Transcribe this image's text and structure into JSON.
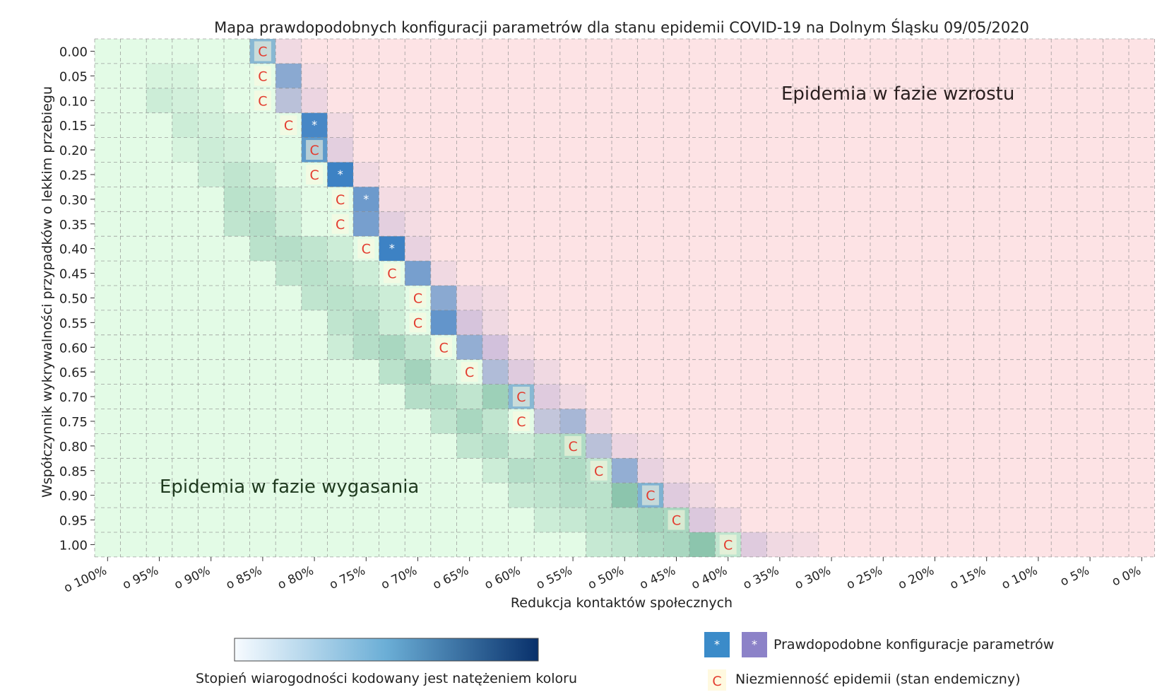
{
  "chart_data": {
    "type": "heatmap",
    "title": "Mapa prawdopodobnych konfiguracji parametrów dla stanu epidemii COVID-19 na Dolnym Śląsku 09/05/2020",
    "xlabel": "Redukcja kontaktów społecznych",
    "ylabel": "Współczynnik wykrywalności przypadków o lekkim przebiegu",
    "x_ticks": [
      "o 100%",
      "o 95%",
      "o 90%",
      "o 85%",
      "o 80%",
      "o 75%",
      "o 70%",
      "o 65%",
      "o 60%",
      "o 55%",
      "o 50%",
      "o 45%",
      "o 40%",
      "o 35%",
      "o 30%",
      "o 25%",
      "o 20%",
      "o 15%",
      "o 10%",
      "o 5%",
      "o 0%"
    ],
    "y_ticks": [
      "0.00",
      "0.05",
      "0.10",
      "0.15",
      "0.20",
      "0.25",
      "0.30",
      "0.35",
      "0.40",
      "0.45",
      "0.50",
      "0.55",
      "0.60",
      "0.65",
      "0.70",
      "0.75",
      "0.80",
      "0.85",
      "0.90",
      "0.95",
      "1.00"
    ],
    "x_values_percent": [
      100,
      97.5,
      95,
      92.5,
      90,
      87.5,
      85,
      82.5,
      80,
      77.5,
      75,
      72.5,
      70,
      67.5,
      65,
      62.5,
      60,
      57.5,
      55,
      52.5,
      50,
      47.5,
      45,
      42.5,
      40,
      37.5,
      35,
      32.5,
      30,
      27.5,
      25,
      22.5,
      20,
      17.5,
      15,
      12.5,
      10,
      7.5,
      5,
      2.5,
      0
    ],
    "y_values": [
      0.0,
      0.05,
      0.1,
      0.15,
      0.2,
      0.25,
      0.3,
      0.35,
      0.4,
      0.45,
      0.5,
      0.55,
      0.6,
      0.65,
      0.7,
      0.75,
      0.8,
      0.85,
      0.9,
      0.95,
      1.0
    ],
    "regions": {
      "declining_label": "Epidemia w fazie wygasania",
      "growing_label": "Epidemia w fazie wzrostu",
      "declining_color": "#e3fbe6",
      "growing_color": "#fde3e5"
    },
    "endemic_C": [
      [
        0,
        6
      ],
      [
        1,
        6
      ],
      [
        2,
        6
      ],
      [
        3,
        7
      ],
      [
        4,
        8
      ],
      [
        5,
        8
      ],
      [
        6,
        9
      ],
      [
        7,
        9
      ],
      [
        8,
        10
      ],
      [
        9,
        11
      ],
      [
        10,
        12
      ],
      [
        11,
        12
      ],
      [
        12,
        13
      ],
      [
        13,
        14
      ],
      [
        14,
        16
      ],
      [
        15,
        16
      ],
      [
        16,
        18
      ],
      [
        17,
        19
      ],
      [
        18,
        21
      ],
      [
        19,
        22
      ],
      [
        20,
        24
      ]
    ],
    "probable_star": [
      [
        3,
        8
      ],
      [
        5,
        9
      ],
      [
        6,
        10
      ],
      [
        8,
        11
      ]
    ],
    "likelihood_cells": [
      [
        0,
        6,
        0.55,
        "b"
      ],
      [
        0,
        7,
        0.15,
        "p"
      ],
      [
        1,
        7,
        0.6,
        "b"
      ],
      [
        1,
        8,
        0.1,
        "p"
      ],
      [
        2,
        7,
        0.35,
        "b"
      ],
      [
        2,
        8,
        0.2,
        "p"
      ],
      [
        3,
        8,
        0.95,
        "b"
      ],
      [
        3,
        9,
        0.15,
        "p"
      ],
      [
        4,
        8,
        0.8,
        "b"
      ],
      [
        4,
        9,
        0.3,
        "p"
      ],
      [
        5,
        9,
        1.0,
        "b"
      ],
      [
        5,
        10,
        0.15,
        "p"
      ],
      [
        6,
        10,
        0.75,
        "b"
      ],
      [
        6,
        11,
        0.1,
        "p"
      ],
      [
        6,
        12,
        0.1,
        "p"
      ],
      [
        7,
        10,
        0.7,
        "b"
      ],
      [
        7,
        11,
        0.3,
        "p"
      ],
      [
        7,
        12,
        0.1,
        "p"
      ],
      [
        8,
        11,
        1.0,
        "b"
      ],
      [
        8,
        12,
        0.25,
        "p"
      ],
      [
        9,
        12,
        0.7,
        "b"
      ],
      [
        9,
        13,
        0.15,
        "p"
      ],
      [
        10,
        13,
        0.6,
        "b"
      ],
      [
        10,
        14,
        0.2,
        "p"
      ],
      [
        10,
        15,
        0.1,
        "p"
      ],
      [
        11,
        13,
        0.8,
        "b"
      ],
      [
        11,
        14,
        0.45,
        "p"
      ],
      [
        11,
        15,
        0.15,
        "p"
      ],
      [
        12,
        14,
        0.55,
        "b"
      ],
      [
        12,
        15,
        0.5,
        "p"
      ],
      [
        12,
        16,
        0.1,
        "p"
      ],
      [
        13,
        15,
        0.4,
        "b"
      ],
      [
        13,
        16,
        0.35,
        "p"
      ],
      [
        13,
        17,
        0.15,
        "p"
      ],
      [
        14,
        16,
        0.55,
        "b"
      ],
      [
        14,
        17,
        0.35,
        "p"
      ],
      [
        14,
        18,
        0.15,
        "p"
      ],
      [
        15,
        17,
        0.3,
        "b"
      ],
      [
        15,
        18,
        0.45,
        "b"
      ],
      [
        15,
        19,
        0.15,
        "p"
      ],
      [
        16,
        19,
        0.35,
        "b"
      ],
      [
        16,
        20,
        0.2,
        "p"
      ],
      [
        16,
        21,
        0.1,
        "p"
      ],
      [
        17,
        20,
        0.55,
        "b"
      ],
      [
        17,
        21,
        0.25,
        "p"
      ],
      [
        17,
        22,
        0.1,
        "p"
      ],
      [
        18,
        21,
        0.6,
        "b"
      ],
      [
        18,
        22,
        0.35,
        "p"
      ],
      [
        18,
        23,
        0.15,
        "p"
      ],
      [
        19,
        23,
        0.4,
        "p"
      ],
      [
        19,
        24,
        0.2,
        "p"
      ],
      [
        20,
        25,
        0.35,
        "p"
      ],
      [
        20,
        26,
        0.15,
        "p"
      ],
      [
        20,
        27,
        0.1,
        "p"
      ]
    ],
    "green_tint_cells": [
      [
        1,
        2,
        0.1
      ],
      [
        1,
        3,
        0.1
      ],
      [
        2,
        2,
        0.2
      ],
      [
        2,
        3,
        0.15
      ],
      [
        2,
        4,
        0.1
      ],
      [
        3,
        3,
        0.2
      ],
      [
        3,
        4,
        0.15
      ],
      [
        3,
        5,
        0.1
      ],
      [
        4,
        3,
        0.1
      ],
      [
        4,
        4,
        0.2
      ],
      [
        4,
        5,
        0.15
      ],
      [
        5,
        4,
        0.2
      ],
      [
        5,
        5,
        0.3
      ],
      [
        5,
        6,
        0.2
      ],
      [
        6,
        5,
        0.35
      ],
      [
        6,
        6,
        0.3
      ],
      [
        6,
        7,
        0.15
      ],
      [
        7,
        5,
        0.3
      ],
      [
        7,
        6,
        0.4
      ],
      [
        7,
        7,
        0.2
      ],
      [
        8,
        6,
        0.35
      ],
      [
        8,
        7,
        0.4
      ],
      [
        8,
        8,
        0.3
      ],
      [
        8,
        9,
        0.2
      ],
      [
        9,
        7,
        0.3
      ],
      [
        9,
        8,
        0.35
      ],
      [
        9,
        9,
        0.3
      ],
      [
        9,
        10,
        0.2
      ],
      [
        10,
        8,
        0.3
      ],
      [
        10,
        9,
        0.35
      ],
      [
        10,
        10,
        0.3
      ],
      [
        10,
        11,
        0.2
      ],
      [
        11,
        9,
        0.3
      ],
      [
        11,
        10,
        0.4
      ],
      [
        11,
        11,
        0.2
      ],
      [
        12,
        9,
        0.2
      ],
      [
        12,
        10,
        0.4
      ],
      [
        12,
        11,
        0.5
      ],
      [
        12,
        12,
        0.3
      ],
      [
        13,
        11,
        0.35
      ],
      [
        13,
        12,
        0.55
      ],
      [
        13,
        13,
        0.2
      ],
      [
        14,
        12,
        0.4
      ],
      [
        14,
        13,
        0.45
      ],
      [
        14,
        14,
        0.3
      ],
      [
        14,
        15,
        0.6
      ],
      [
        15,
        13,
        0.3
      ],
      [
        15,
        14,
        0.5
      ],
      [
        15,
        15,
        0.3
      ],
      [
        16,
        14,
        0.3
      ],
      [
        16,
        15,
        0.4
      ],
      [
        16,
        16,
        0.2
      ],
      [
        16,
        17,
        0.35
      ],
      [
        16,
        18,
        0.45
      ],
      [
        17,
        15,
        0.2
      ],
      [
        17,
        16,
        0.4
      ],
      [
        17,
        17,
        0.35
      ],
      [
        17,
        18,
        0.45
      ],
      [
        17,
        19,
        0.3
      ],
      [
        18,
        16,
        0.25
      ],
      [
        18,
        17,
        0.3
      ],
      [
        18,
        18,
        0.4
      ],
      [
        18,
        19,
        0.35
      ],
      [
        18,
        20,
        0.75
      ],
      [
        19,
        17,
        0.2
      ],
      [
        19,
        18,
        0.25
      ],
      [
        19,
        19,
        0.35
      ],
      [
        19,
        20,
        0.4
      ],
      [
        19,
        21,
        0.55
      ],
      [
        19,
        22,
        0.5
      ],
      [
        20,
        19,
        0.25
      ],
      [
        20,
        20,
        0.3
      ],
      [
        20,
        21,
        0.45
      ],
      [
        20,
        22,
        0.5
      ],
      [
        20,
        23,
        0.75
      ],
      [
        20,
        24,
        0.3
      ]
    ],
    "colorbar": {
      "label": "Stopień wiarogodności kodowany jest natężeniem koloru",
      "color_from": "#f7fbff",
      "color_to": "#08306b"
    },
    "legend": {
      "probable_label": "Prawdopodobne konfiguracje parametrów",
      "endemic_label": "Niezmienność epidemii (stan endemiczny)",
      "probable_colors": [
        "#3b8bc9",
        "#8c82c8"
      ],
      "star_symbol": "*",
      "endemic_symbol": "C",
      "endemic_color": "#e33b2e"
    },
    "grid": "on",
    "colors": {
      "blue": "#3d82c4",
      "purple": "#a79fd2",
      "green_dark": "#6fb39a",
      "grid": "#8a8a8a"
    }
  }
}
